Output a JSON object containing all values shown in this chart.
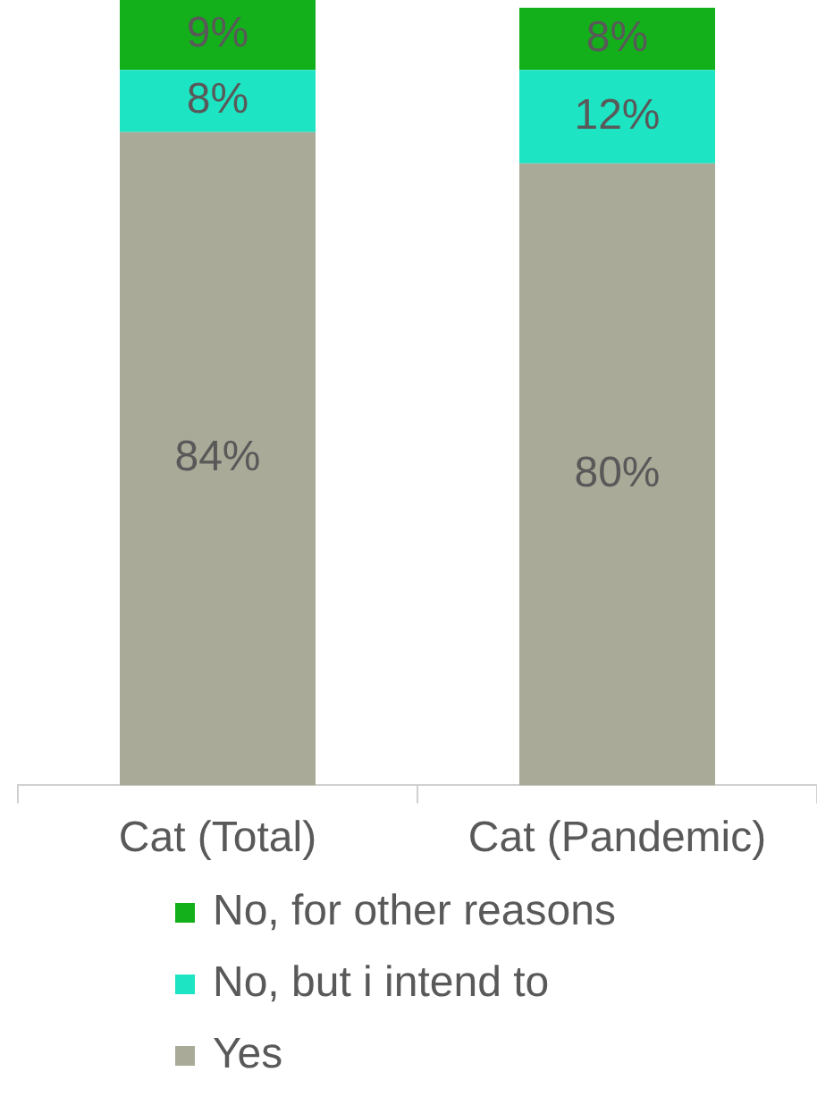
{
  "chart_data": {
    "type": "bar",
    "stacked": true,
    "categories": [
      "Cat (Total)",
      "Cat (Pandemic)"
    ],
    "series": [
      {
        "name": "Yes",
        "color": "#aaaa99",
        "values": [
          84,
          80
        ],
        "value_labels": [
          "84%",
          "80%"
        ]
      },
      {
        "name": "No, but i intend to",
        "color": "#1de5c3",
        "values": [
          8,
          12
        ],
        "value_labels": [
          "8%",
          "12%"
        ]
      },
      {
        "name": "No, for other reasons",
        "color": "#13b01b",
        "values": [
          9,
          8
        ],
        "value_labels": [
          "9%",
          "8%"
        ]
      }
    ],
    "legend": "bottom",
    "grid": false
  }
}
